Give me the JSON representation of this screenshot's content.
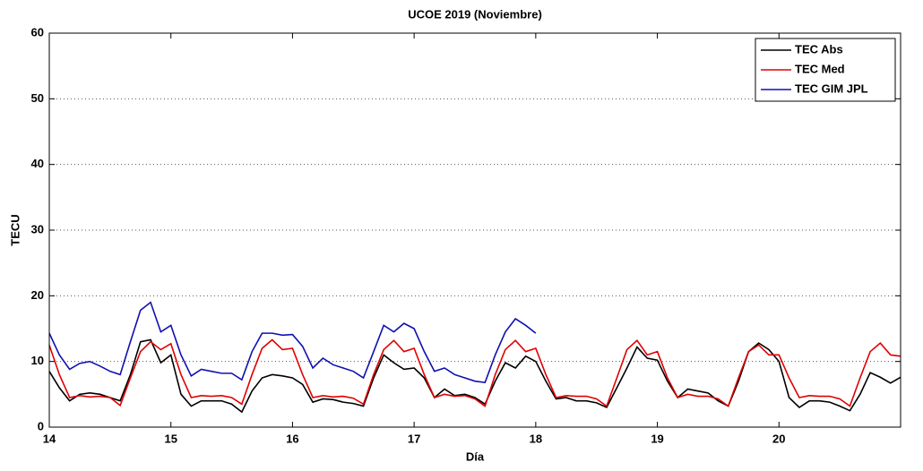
{
  "chart_data": {
    "type": "line",
    "title": "UCOE 2019 (Noviembre)",
    "x_label": "Día",
    "y_label": "TECU",
    "x": [
      14,
      14.083,
      14.167,
      14.25,
      14.333,
      14.417,
      14.5,
      14.583,
      14.667,
      14.75,
      14.833,
      14.917,
      15,
      15.083,
      15.167,
      15.25,
      15.333,
      15.417,
      15.5,
      15.583,
      15.667,
      15.75,
      15.833,
      15.917,
      16,
      16.083,
      16.167,
      16.25,
      16.333,
      16.417,
      16.5,
      16.583,
      16.667,
      16.75,
      16.833,
      16.917,
      17,
      17.083,
      17.167,
      17.25,
      17.333,
      17.417,
      17.5,
      17.583,
      17.667,
      17.75,
      17.833,
      17.917,
      18,
      18.083,
      18.167,
      18.25,
      18.333,
      18.417,
      18.5,
      18.583,
      18.667,
      18.75,
      18.833,
      18.917,
      19,
      19.083,
      19.167,
      19.25,
      19.333,
      19.417,
      19.5,
      19.583,
      19.667,
      19.75,
      19.833,
      19.917,
      20,
      20.083,
      20.167,
      20.25,
      20.333,
      20.417,
      20.5,
      20.583,
      20.667,
      20.75,
      20.833,
      20.917,
      21
    ],
    "series": [
      {
        "name": "TEC Abs",
        "color": "#000000",
        "values": [
          8.5,
          6,
          4,
          5,
          5.2,
          5,
          4.5,
          4,
          8,
          13,
          13.3,
          9.8,
          11,
          5,
          3.2,
          4,
          4,
          4,
          3.5,
          2.3,
          5.5,
          7.5,
          8,
          7.8,
          7.5,
          6.5,
          3.8,
          4.3,
          4.2,
          3.8,
          3.6,
          3.2,
          7.5,
          11,
          9.8,
          8.8,
          9,
          7.5,
          4.5,
          5.8,
          4.8,
          5,
          4.5,
          3.5,
          7,
          9.8,
          9,
          10.8,
          10,
          7,
          4.3,
          4.5,
          4,
          4,
          3.7,
          3,
          6,
          9,
          12.2,
          10.5,
          10.2,
          7,
          4.5,
          5.8,
          5.5,
          5.2,
          4,
          3.2,
          7,
          11.5,
          12.8,
          11.8,
          10,
          4.5,
          3,
          4,
          4,
          3.8,
          3.2,
          2.5,
          5,
          8.3,
          7.6,
          6.7,
          7.6
        ]
      },
      {
        "name": "TEC Med",
        "color": "#e00000",
        "values": [
          12.5,
          8,
          4.5,
          4.8,
          4.6,
          4.7,
          4.5,
          3.3,
          7.5,
          11.5,
          13,
          11.8,
          12.7,
          8,
          4.5,
          4.8,
          4.7,
          4.8,
          4.5,
          3.5,
          8,
          12,
          13.3,
          11.8,
          12,
          8,
          4.5,
          4.8,
          4.6,
          4.7,
          4.4,
          3.5,
          8,
          11.8,
          13.2,
          11.5,
          12,
          8,
          4.5,
          5,
          4.7,
          4.8,
          4.3,
          3.2,
          8,
          11.8,
          13.2,
          11.5,
          12,
          8,
          4.5,
          4.8,
          4.7,
          4.7,
          4.3,
          3.2,
          7.5,
          11.8,
          13.2,
          11,
          11.5,
          7.5,
          4.5,
          5,
          4.7,
          4.7,
          4.3,
          3.2,
          7.5,
          11.5,
          12.5,
          11,
          11,
          7.5,
          4.5,
          4.8,
          4.7,
          4.7,
          4.3,
          3.2,
          7.5,
          11.5,
          12.8,
          11,
          10.8
        ]
      },
      {
        "name": "TEC GIM JPL",
        "color": "#1010b0",
        "values": [
          14.3,
          11,
          8.8,
          9.7,
          10,
          9.3,
          8.5,
          8,
          13,
          17.8,
          19,
          14.5,
          15.5,
          11,
          7.8,
          8.8,
          8.5,
          8.2,
          8.2,
          7.2,
          11.5,
          14.3,
          14.3,
          14,
          14.1,
          12.3,
          9,
          10.5,
          9.5,
          9,
          8.5,
          7.5,
          11.5,
          15.5,
          14.5,
          15.8,
          15,
          11.5,
          8.5,
          9,
          8,
          7.5,
          7,
          6.8,
          11,
          14.5,
          16.5,
          15.5,
          14.3,
          null,
          null,
          null,
          null,
          null,
          null,
          null,
          null,
          null,
          null,
          null,
          null,
          null,
          null,
          null,
          null,
          null,
          null,
          null,
          null,
          null,
          null,
          null,
          null,
          null,
          null,
          null,
          null,
          null,
          null,
          null,
          null,
          null,
          null,
          null,
          null
        ]
      }
    ],
    "xlim": [
      14,
      21
    ],
    "xticks": [
      14,
      15,
      16,
      17,
      18,
      19,
      20
    ],
    "ylim": [
      0,
      60
    ],
    "yticks": [
      0,
      10,
      20,
      30,
      40,
      50,
      60
    ],
    "grid": "y",
    "legend": "upper right"
  }
}
